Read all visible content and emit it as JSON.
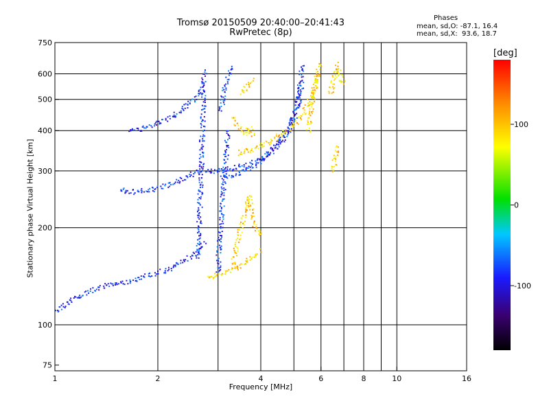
{
  "chart_data": {
    "type": "scatter",
    "title": "Tromsø 20150509 20:40:00–20:41:43",
    "subtitle": "RwPretec (8p)",
    "xlabel": "Frequency [MHz]",
    "ylabel": "Stationary phase Virtual Height [km]",
    "xscale": "log",
    "yscale": "log",
    "xlim": [
      1,
      16
    ],
    "ylim": [
      72,
      750
    ],
    "x_ticks": [
      1,
      2,
      4,
      6,
      8,
      10,
      16
    ],
    "x_tick_labels": [
      "1",
      "2",
      "4",
      "6",
      "8",
      "10",
      "16"
    ],
    "y_ticks": [
      75,
      100,
      200,
      300,
      400,
      500,
      600,
      750
    ],
    "y_tick_labels": [
      "75",
      "100",
      "200",
      "300",
      "400",
      "500",
      "600",
      "750"
    ],
    "grid": true,
    "grid_x": [
      2,
      3,
      4,
      5,
      6,
      7,
      8,
      9,
      10
    ],
    "grid_y": [
      100,
      200,
      300,
      400,
      500,
      600
    ],
    "legend": {
      "heading": "Phases",
      "line1": "mean, sd,O: -87.1, 16.4",
      "line2": "mean, sd,X:  93.6, 18.7"
    },
    "colorbar": {
      "label": "[deg]",
      "range": [
        -180,
        180
      ],
      "ticks": [
        -100,
        0,
        100
      ],
      "tick_labels": [
        "-100",
        "0",
        "100"
      ]
    },
    "series": [
      {
        "name": "O",
        "color_phase": -87.1,
        "traces": [
          {
            "x": [
              1.0,
              1.05,
              1.1,
              1.2,
              1.3,
              1.4,
              1.5,
              1.6,
              1.7,
              1.8,
              2.0,
              2.2,
              2.4,
              2.6,
              2.75
            ],
            "y": [
              110,
              114,
              118,
              124,
              128,
              132,
              134,
              136,
              138,
              140,
              145,
              150,
              158,
              168,
              180
            ]
          },
          {
            "x": [
              1.55,
              1.7,
              1.9,
              2.1,
              2.3,
              2.5,
              2.7
            ],
            "y": [
              262,
              258,
              262,
              270,
              280,
              292,
              305
            ]
          },
          {
            "x": [
              1.65,
              1.8,
              2.0,
              2.2,
              2.4,
              2.6,
              2.75
            ],
            "y": [
              398,
              405,
              420,
              440,
              470,
              510,
              560
            ]
          },
          {
            "x": [
              2.75,
              3.0,
              3.3,
              3.6,
              4.0,
              4.3,
              4.7,
              5.0,
              5.3
            ],
            "y": [
              298,
              300,
              305,
              312,
              325,
              345,
              380,
              430,
              560
            ]
          },
          {
            "x": [
              3.1,
              3.3,
              3.6,
              3.9,
              4.2,
              4.5,
              4.8,
              5.1,
              5.3
            ],
            "y": [
              285,
              290,
              300,
              315,
              335,
              365,
              405,
              470,
              640
            ]
          },
          {
            "x": [
              2.63,
              2.64,
              2.66,
              2.68,
              2.7,
              2.72,
              2.74
            ],
            "y": [
              160,
              200,
              250,
              300,
              400,
              500,
              620
            ]
          },
          {
            "x": [
              3.0,
              3.02,
              3.05,
              3.1,
              3.15,
              3.2
            ],
            "y": [
              145,
              170,
              200,
              250,
              310,
              400
            ]
          },
          {
            "x": [
              3.05,
              3.1,
              3.15,
              3.2,
              3.3
            ],
            "y": [
              460,
              500,
              540,
              580,
              640
            ]
          }
        ]
      },
      {
        "name": "X",
        "color_phase": 93.6,
        "traces": [
          {
            "x": [
              2.8,
              3.0,
              3.2,
              3.4,
              3.6,
              3.8,
              4.0
            ],
            "y": [
              140,
              142,
              146,
              150,
              156,
              162,
              170
            ]
          },
          {
            "x": [
              3.3,
              3.4,
              3.5,
              3.6,
              3.7,
              3.8,
              4.0
            ],
            "y": [
              150,
              175,
              200,
              225,
              250,
              210,
              185
            ]
          },
          {
            "x": [
              3.4,
              3.6,
              3.8,
              4.0,
              4.3,
              4.6,
              5.0,
              5.3,
              5.6,
              5.9
            ],
            "y": [
              340,
              345,
              350,
              360,
              372,
              390,
              415,
              450,
              500,
              600
            ]
          },
          {
            "x": [
              3.3,
              3.4,
              3.5,
              3.6,
              3.7,
              3.8
            ],
            "y": [
              440,
              420,
              400,
              390,
              410,
              380
            ]
          },
          {
            "x": [
              5.5,
              5.6,
              5.7,
              5.8,
              5.9,
              6.0
            ],
            "y": [
              400,
              450,
              500,
              560,
              620,
              650
            ]
          },
          {
            "x": [
              3.5,
              3.6,
              3.7,
              3.8
            ],
            "y": [
              520,
              540,
              560,
              580
            ]
          },
          {
            "x": [
              6.4,
              6.5,
              6.6,
              6.7,
              6.8,
              7.0
            ],
            "y": [
              520,
              560,
              600,
              640,
              600,
              550
            ]
          },
          {
            "x": [
              6.5,
              6.6,
              6.7
            ],
            "y": [
              300,
              330,
              360
            ]
          }
        ]
      }
    ]
  }
}
